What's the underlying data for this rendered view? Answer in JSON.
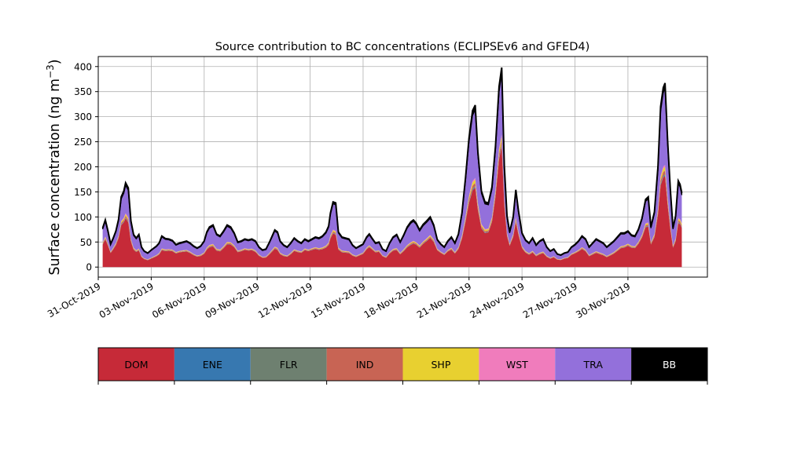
{
  "chart_data": {
    "type": "area",
    "title": "Source contribution to BC concentrations (ECLIPSEv6 and GFED4)",
    "ylabel": "Surface concentration (ng m",
    "ylabel_exp": "−3",
    "ylabel_close": ")",
    "xlabel": "",
    "ylim": [
      -20,
      420
    ],
    "yticks": [
      0,
      50,
      100,
      150,
      200,
      250,
      300,
      350,
      400
    ],
    "xlim_days": [
      0,
      34.5
    ],
    "xticks": [
      {
        "label": "31-Oct-2019",
        "day": 0
      },
      {
        "label": "03-Nov-2019",
        "day": 3
      },
      {
        "label": "06-Nov-2019",
        "day": 6
      },
      {
        "label": "09-Nov-2019",
        "day": 9
      },
      {
        "label": "12-Nov-2019",
        "day": 12
      },
      {
        "label": "15-Nov-2019",
        "day": 15
      },
      {
        "label": "18-Nov-2019",
        "day": 18
      },
      {
        "label": "21-Nov-2019",
        "day": 21
      },
      {
        "label": "24-Nov-2019",
        "day": 24
      },
      {
        "label": "27-Nov-2019",
        "day": 27
      },
      {
        "label": "30-Nov-2019",
        "day": 30
      }
    ],
    "grid": true,
    "series_order": [
      "DOM",
      "ENE",
      "FLR",
      "IND",
      "SHP",
      "WST",
      "TRA",
      "BB"
    ],
    "colors": {
      "DOM": "#c62a38",
      "ENE": "#3778b0",
      "FLR": "#6e8070",
      "IND": "#c86454",
      "SHP": "#e8d030",
      "WST": "#f07cbc",
      "TRA": "#9370db",
      "BB": "#000000"
    },
    "legend": [
      {
        "name": "DOM",
        "color": "#c62a38",
        "text_color": "#000000"
      },
      {
        "name": "ENE",
        "color": "#3778b0",
        "text_color": "#000000"
      },
      {
        "name": "FLR",
        "color": "#6e8070",
        "text_color": "#000000"
      },
      {
        "name": "IND",
        "color": "#c86454",
        "text_color": "#000000"
      },
      {
        "name": "SHP",
        "color": "#e8d030",
        "text_color": "#000000"
      },
      {
        "name": "WST",
        "color": "#f07cbc",
        "text_color": "#000000"
      },
      {
        "name": "TRA",
        "color": "#9370db",
        "text_color": "#000000"
      },
      {
        "name": "BB",
        "color": "#000000",
        "text_color": "#ffffff"
      }
    ],
    "legend_placement": "below",
    "total_profile": [
      [
        0.25,
        78
      ],
      [
        0.4,
        94
      ],
      [
        0.55,
        72
      ],
      [
        0.7,
        46
      ],
      [
        0.85,
        58
      ],
      [
        1.0,
        72
      ],
      [
        1.15,
        95
      ],
      [
        1.3,
        140
      ],
      [
        1.45,
        152
      ],
      [
        1.55,
        168
      ],
      [
        1.7,
        158
      ],
      [
        1.85,
        92
      ],
      [
        2.0,
        65
      ],
      [
        2.15,
        58
      ],
      [
        2.3,
        65
      ],
      [
        2.45,
        40
      ],
      [
        2.6,
        32
      ],
      [
        2.8,
        28
      ],
      [
        3.0,
        34
      ],
      [
        3.3,
        42
      ],
      [
        3.45,
        48
      ],
      [
        3.6,
        62
      ],
      [
        3.8,
        57
      ],
      [
        4.0,
        56
      ],
      [
        4.2,
        53
      ],
      [
        4.4,
        45
      ],
      [
        4.6,
        48
      ],
      [
        4.8,
        50
      ],
      [
        5.0,
        52
      ],
      [
        5.2,
        48
      ],
      [
        5.4,
        42
      ],
      [
        5.6,
        38
      ],
      [
        5.8,
        42
      ],
      [
        6.0,
        52
      ],
      [
        6.15,
        70
      ],
      [
        6.3,
        80
      ],
      [
        6.5,
        84
      ],
      [
        6.7,
        66
      ],
      [
        6.9,
        62
      ],
      [
        7.1,
        72
      ],
      [
        7.3,
        84
      ],
      [
        7.5,
        80
      ],
      [
        7.7,
        68
      ],
      [
        7.9,
        50
      ],
      [
        8.1,
        52
      ],
      [
        8.3,
        56
      ],
      [
        8.5,
        54
      ],
      [
        8.7,
        56
      ],
      [
        8.9,
        52
      ],
      [
        9.1,
        40
      ],
      [
        9.3,
        34
      ],
      [
        9.5,
        36
      ],
      [
        9.7,
        50
      ],
      [
        9.85,
        62
      ],
      [
        10.0,
        74
      ],
      [
        10.15,
        70
      ],
      [
        10.3,
        52
      ],
      [
        10.5,
        44
      ],
      [
        10.7,
        40
      ],
      [
        10.9,
        48
      ],
      [
        11.1,
        58
      ],
      [
        11.3,
        52
      ],
      [
        11.5,
        48
      ],
      [
        11.7,
        56
      ],
      [
        11.9,
        52
      ],
      [
        12.1,
        56
      ],
      [
        12.3,
        60
      ],
      [
        12.5,
        58
      ],
      [
        12.7,
        62
      ],
      [
        12.9,
        70
      ],
      [
        13.05,
        82
      ],
      [
        13.15,
        108
      ],
      [
        13.3,
        130
      ],
      [
        13.45,
        128
      ],
      [
        13.6,
        70
      ],
      [
        13.8,
        60
      ],
      [
        14.0,
        58
      ],
      [
        14.2,
        56
      ],
      [
        14.4,
        44
      ],
      [
        14.6,
        38
      ],
      [
        14.8,
        42
      ],
      [
        15.0,
        46
      ],
      [
        15.2,
        60
      ],
      [
        15.35,
        66
      ],
      [
        15.5,
        58
      ],
      [
        15.7,
        48
      ],
      [
        15.9,
        50
      ],
      [
        16.1,
        36
      ],
      [
        16.3,
        32
      ],
      [
        16.5,
        48
      ],
      [
        16.7,
        60
      ],
      [
        16.9,
        65
      ],
      [
        17.1,
        50
      ],
      [
        17.3,
        64
      ],
      [
        17.5,
        80
      ],
      [
        17.7,
        90
      ],
      [
        17.85,
        94
      ],
      [
        18.0,
        88
      ],
      [
        18.2,
        74
      ],
      [
        18.4,
        85
      ],
      [
        18.6,
        92
      ],
      [
        18.8,
        100
      ],
      [
        19.0,
        84
      ],
      [
        19.2,
        55
      ],
      [
        19.4,
        46
      ],
      [
        19.6,
        40
      ],
      [
        19.8,
        52
      ],
      [
        20.0,
        60
      ],
      [
        20.2,
        48
      ],
      [
        20.4,
        66
      ],
      [
        20.6,
        108
      ],
      [
        20.8,
        178
      ],
      [
        21.0,
        258
      ],
      [
        21.2,
        312
      ],
      [
        21.35,
        323
      ],
      [
        21.5,
        230
      ],
      [
        21.7,
        152
      ],
      [
        21.9,
        130
      ],
      [
        22.1,
        128
      ],
      [
        22.3,
        160
      ],
      [
        22.5,
        242
      ],
      [
        22.7,
        360
      ],
      [
        22.85,
        398
      ],
      [
        23.0,
        200
      ],
      [
        23.15,
        102
      ],
      [
        23.3,
        70
      ],
      [
        23.5,
        100
      ],
      [
        23.65,
        154
      ],
      [
        23.8,
        112
      ],
      [
        24.0,
        68
      ],
      [
        24.2,
        54
      ],
      [
        24.4,
        48
      ],
      [
        24.6,
        58
      ],
      [
        24.8,
        44
      ],
      [
        25.0,
        52
      ],
      [
        25.2,
        56
      ],
      [
        25.4,
        40
      ],
      [
        25.6,
        32
      ],
      [
        25.8,
        36
      ],
      [
        26.0,
        26
      ],
      [
        26.2,
        24
      ],
      [
        26.4,
        28
      ],
      [
        26.6,
        30
      ],
      [
        26.8,
        40
      ],
      [
        27.0,
        45
      ],
      [
        27.2,
        52
      ],
      [
        27.4,
        62
      ],
      [
        27.6,
        56
      ],
      [
        27.8,
        40
      ],
      [
        28.0,
        48
      ],
      [
        28.2,
        56
      ],
      [
        28.4,
        52
      ],
      [
        28.6,
        48
      ],
      [
        28.8,
        40
      ],
      [
        29.0,
        46
      ],
      [
        29.2,
        52
      ],
      [
        29.4,
        60
      ],
      [
        29.6,
        68
      ],
      [
        29.8,
        68
      ],
      [
        30.0,
        72
      ],
      [
        30.2,
        64
      ],
      [
        30.4,
        62
      ],
      [
        30.6,
        76
      ],
      [
        30.8,
        98
      ],
      [
        31.0,
        135
      ],
      [
        31.15,
        140
      ],
      [
        31.3,
        80
      ],
      [
        31.5,
        110
      ],
      [
        31.7,
        200
      ],
      [
        31.85,
        320
      ],
      [
        32.0,
        358
      ],
      [
        32.1,
        367
      ],
      [
        32.25,
        250
      ],
      [
        32.4,
        155
      ],
      [
        32.55,
        78
      ],
      [
        32.7,
        102
      ],
      [
        32.85,
        172
      ],
      [
        32.95,
        165
      ],
      [
        33.05,
        148
      ]
    ],
    "fractions": {
      "DOM": 0.55,
      "ENE": 0.005,
      "FLR": 0.005,
      "IND": 0.02,
      "SHP": 0.02,
      "WST": 0.01,
      "TRA": 0.36,
      "BB": 0.03
    }
  }
}
